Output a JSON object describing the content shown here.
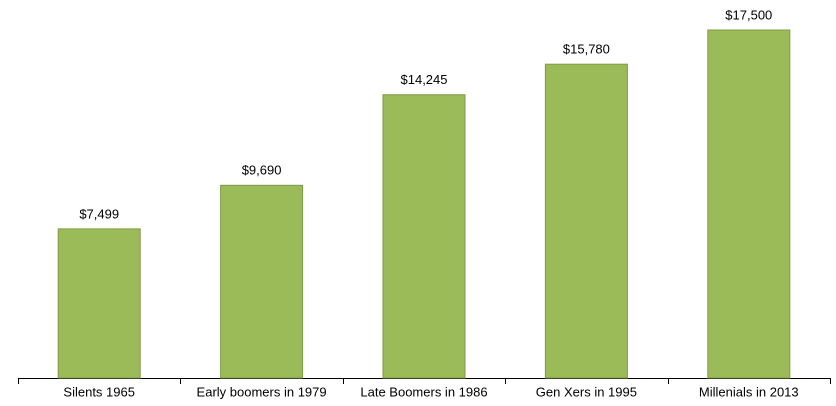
{
  "chart_data": {
    "type": "bar",
    "categories": [
      "Silents 1965",
      "Early boomers in 1979",
      "Late Boomers in 1986",
      "Gen Xers in 1995",
      "Millenials in 2013"
    ],
    "values": [
      7499,
      9690,
      14245,
      15780,
      17500
    ],
    "value_labels": [
      "$7,499",
      "$9,690",
      "$14,245",
      "$15,780",
      "$17,500"
    ],
    "color": "#9bbb59"
  }
}
